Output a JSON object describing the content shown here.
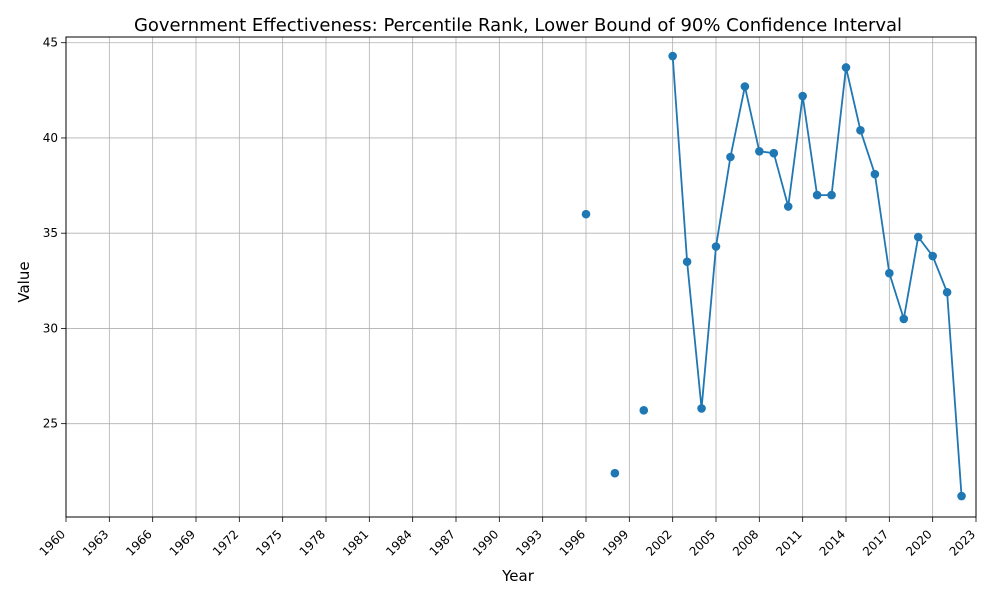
{
  "chart_data": {
    "type": "line",
    "title": "Government Effectiveness: Percentile Rank, Lower Bound of 90% Confidence Interval",
    "xlabel": "Year",
    "ylabel": "Value",
    "xlim": [
      1960,
      2023
    ],
    "ylim": [
      20.1,
      45.3
    ],
    "x_ticks": [
      1960,
      1963,
      1966,
      1969,
      1972,
      1975,
      1978,
      1981,
      1984,
      1987,
      1990,
      1993,
      1996,
      1999,
      2002,
      2005,
      2008,
      2011,
      2014,
      2017,
      2020,
      2023
    ],
    "y_ticks": [
      25,
      30,
      35,
      40,
      45
    ],
    "grid": true,
    "series": [
      {
        "color": "#1f77b4",
        "marker": "circle",
        "x": [
          1996,
          1998,
          2000,
          2002,
          2003,
          2004,
          2005,
          2006,
          2007,
          2008,
          2009,
          2010,
          2011,
          2012,
          2013,
          2014,
          2015,
          2016,
          2017,
          2018,
          2019,
          2020,
          2021,
          2022
        ],
        "y": [
          36.0,
          22.4,
          25.7,
          44.3,
          33.5,
          25.8,
          34.3,
          39.0,
          42.7,
          39.3,
          39.2,
          36.4,
          42.2,
          37.0,
          37.0,
          43.7,
          40.4,
          38.1,
          32.9,
          30.5,
          34.8,
          33.8,
          31.9,
          21.2
        ]
      }
    ]
  }
}
